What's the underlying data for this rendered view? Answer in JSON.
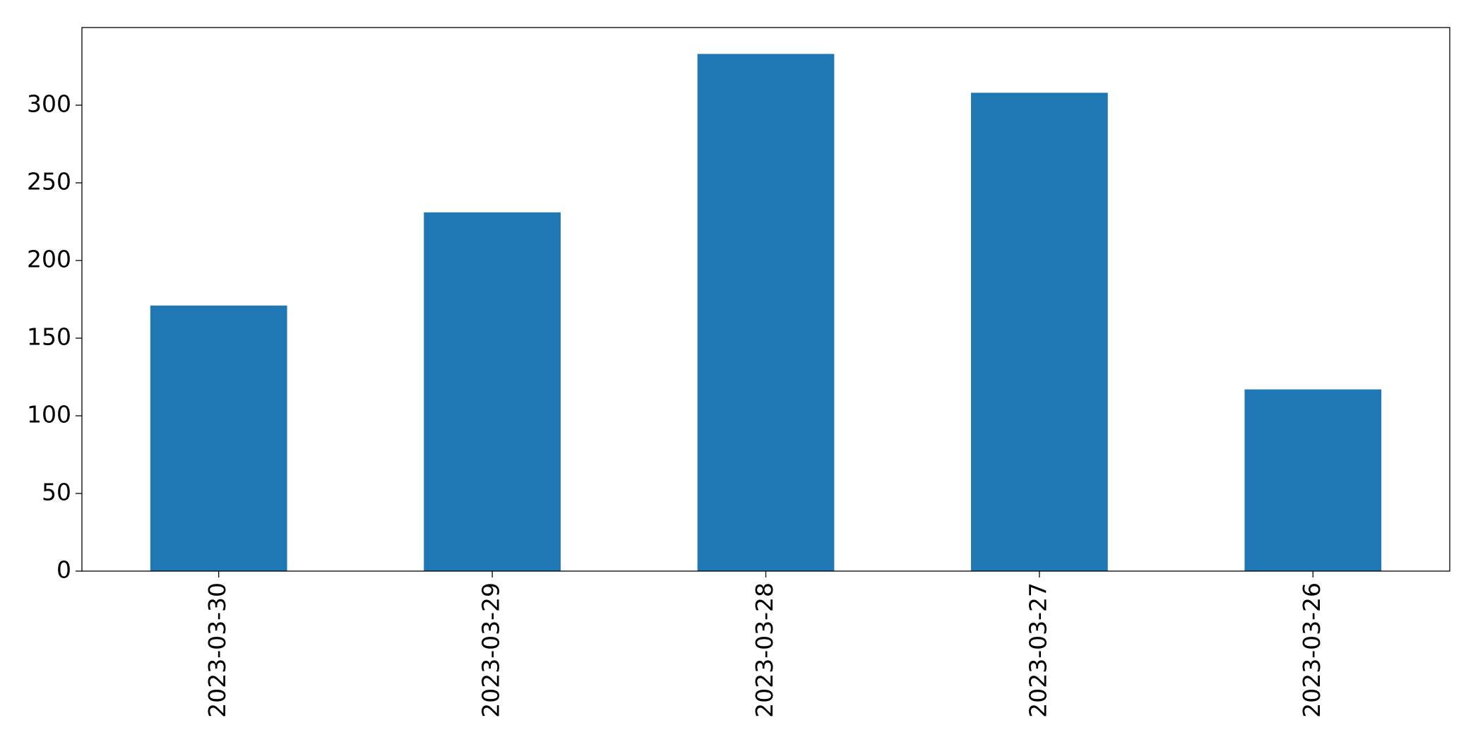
{
  "chart_data": {
    "type": "bar",
    "categories": [
      "2023-03-30",
      "2023-03-29",
      "2023-03-28",
      "2023-03-27",
      "2023-03-26"
    ],
    "values": [
      171,
      231,
      333,
      308,
      117
    ],
    "color": "#1f77b4",
    "ylim": [
      0,
      350
    ],
    "yticks": [
      0,
      50,
      100,
      150,
      200,
      250,
      300
    ],
    "grid": false
  }
}
